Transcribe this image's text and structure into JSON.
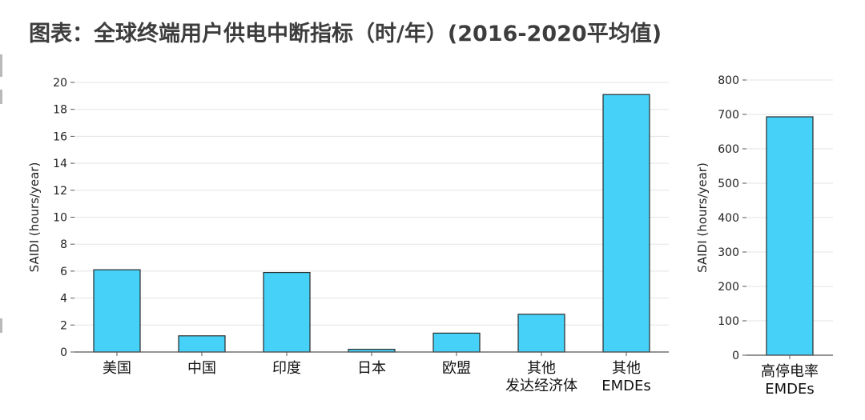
{
  "title": "图表：全球终端用户供电中断指标（时/年）(2016-2020平均值)",
  "colors": {
    "bar": "#45d1f8",
    "bar_stroke": "#2b2b2b",
    "grid": "#e3e3e3",
    "axis": "#555555"
  },
  "chart_data": [
    {
      "type": "bar",
      "title": "",
      "xlabel": "",
      "ylabel": "SAIDI (hours/year)",
      "ylim": [
        0,
        20
      ],
      "yticks": [
        0,
        2,
        4,
        6,
        8,
        10,
        12,
        14,
        16,
        18,
        20
      ],
      "grid": true,
      "categories": [
        [
          "美国"
        ],
        [
          "中国"
        ],
        [
          "印度"
        ],
        [
          "日本"
        ],
        [
          "欧盟"
        ],
        [
          "其他",
          "发达经济体"
        ],
        [
          "其他",
          "EMDEs"
        ]
      ],
      "values": [
        6.1,
        1.2,
        5.9,
        0.2,
        1.4,
        2.8,
        19.1
      ]
    },
    {
      "type": "bar",
      "title": "",
      "xlabel": "",
      "ylabel": "SAIDI (hours/year)",
      "ylim": [
        0,
        800
      ],
      "yticks": [
        0,
        100,
        200,
        300,
        400,
        500,
        600,
        700,
        800
      ],
      "grid": true,
      "categories": [
        [
          "高停电率",
          "EMDEs"
        ]
      ],
      "values": [
        693
      ]
    }
  ]
}
